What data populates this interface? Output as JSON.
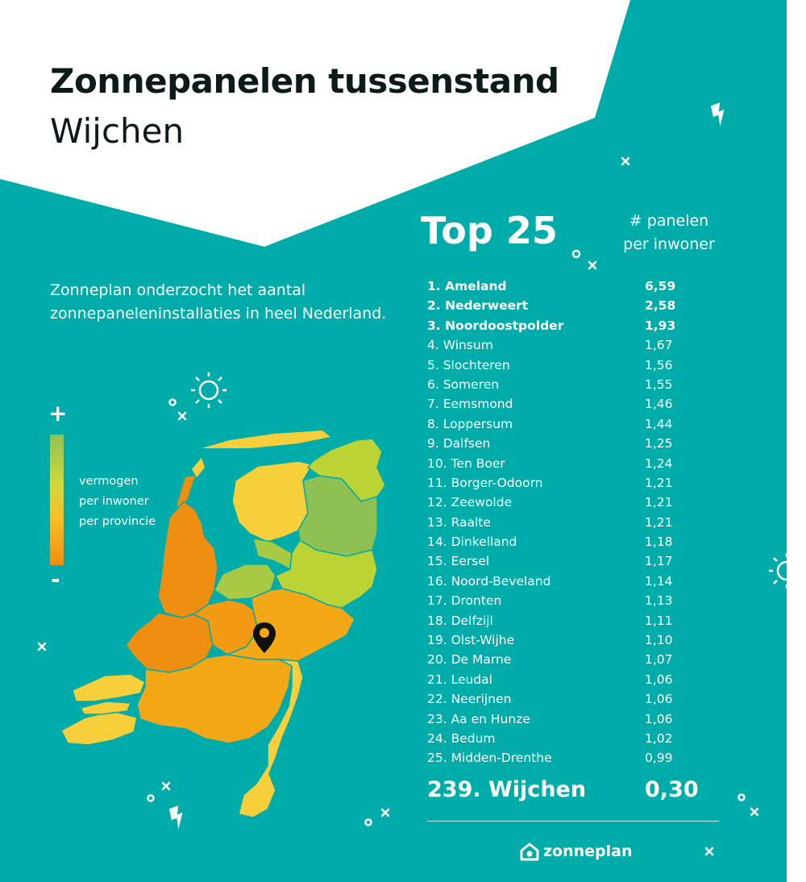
{
  "colors": {
    "background": "#00aca9",
    "title_text": "#0c1a1a",
    "scale_high": "#8fc152",
    "scale_mid": "#f6bd25",
    "scale_low": "#ef8f12"
  },
  "header": {
    "title": "Zonnepanelen tussenstand",
    "subtitle": "Wijchen"
  },
  "intro": "Zonneplan onderzocht het aantal zonnepaneleninstallaties in heel Nederland.",
  "legend": {
    "plus": "+",
    "minus": "-",
    "label_line1": "vermogen",
    "label_line2": "per inwoner",
    "label_line3": "per provincie"
  },
  "ranking": {
    "heading": "Top 25",
    "column_line1": "# panelen",
    "column_line2": "per inwoner",
    "rows": [
      {
        "label": "1. Ameland",
        "value": "6,59",
        "bold": true
      },
      {
        "label": "2. Nederweert",
        "value": "2,58",
        "bold": true
      },
      {
        "label": "3. Noordoostpolder",
        "value": "1,93",
        "bold": true
      },
      {
        "label": "4. Winsum",
        "value": "1,67",
        "bold": false
      },
      {
        "label": "5. Slochteren",
        "value": "1,56",
        "bold": false
      },
      {
        "label": "6. Someren",
        "value": "1,55",
        "bold": false
      },
      {
        "label": "7. Eemsmond",
        "value": "1,46",
        "bold": false
      },
      {
        "label": "8. Loppersum",
        "value": "1,44",
        "bold": false
      },
      {
        "label": "9. Dalfsen",
        "value": "1,25",
        "bold": false
      },
      {
        "label": "10. Ten Boer",
        "value": "1,24",
        "bold": false
      },
      {
        "label": "11. Borger-Odoorn",
        "value": "1,21",
        "bold": false
      },
      {
        "label": "12. Zeewolde",
        "value": "1,21",
        "bold": false
      },
      {
        "label": "13. Raalte",
        "value": "1,21",
        "bold": false
      },
      {
        "label": "14. Dinkelland",
        "value": "1,18",
        "bold": false
      },
      {
        "label": "15. Eersel",
        "value": "1,17",
        "bold": false
      },
      {
        "label": "16. Noord-Beveland",
        "value": "1,14",
        "bold": false
      },
      {
        "label": "17. Dronten",
        "value": "1,13",
        "bold": false
      },
      {
        "label": "18. Delfzijl",
        "value": "1,11",
        "bold": false
      },
      {
        "label": "19. Olst-Wijhe",
        "value": "1,10",
        "bold": false
      },
      {
        "label": "20. De Marne",
        "value": "1,07",
        "bold": false
      },
      {
        "label": "21. Leudal",
        "value": "1,06",
        "bold": false
      },
      {
        "label": "22. Neerijnen",
        "value": "1,06",
        "bold": false
      },
      {
        "label": "23. Aa en Hunze",
        "value": "1,06",
        "bold": false
      },
      {
        "label": "24. Bedum",
        "value": "1,02",
        "bold": false
      },
      {
        "label": "25. Midden-Drenthe",
        "value": "0,99",
        "bold": false
      }
    ],
    "highlight": {
      "label": "239. Wijchen",
      "value": "0,30"
    }
  },
  "brand": {
    "name": "zonneplan",
    "logo_icon": "house-icon"
  },
  "map": {
    "marker_icon": "location-pin-icon",
    "provinces": [
      {
        "name": "Friesland",
        "color": "#f6cf3a"
      },
      {
        "name": "Groningen",
        "color": "#bcd336"
      },
      {
        "name": "Drenthe",
        "color": "#8fc152"
      },
      {
        "name": "Overijssel",
        "color": "#bcd336"
      },
      {
        "name": "Flevoland",
        "color": "#a7c944"
      },
      {
        "name": "Noord-Holland",
        "color": "#ef8f12"
      },
      {
        "name": "Zuid-Holland",
        "color": "#ef8f12"
      },
      {
        "name": "Utrecht",
        "color": "#f19a12"
      },
      {
        "name": "Gelderland",
        "color": "#f5a815"
      },
      {
        "name": "Noord-Brabant",
        "color": "#f5a815"
      },
      {
        "name": "Zeeland",
        "color": "#f6cf3a"
      },
      {
        "name": "Limburg",
        "color": "#f6cf3a"
      }
    ]
  }
}
